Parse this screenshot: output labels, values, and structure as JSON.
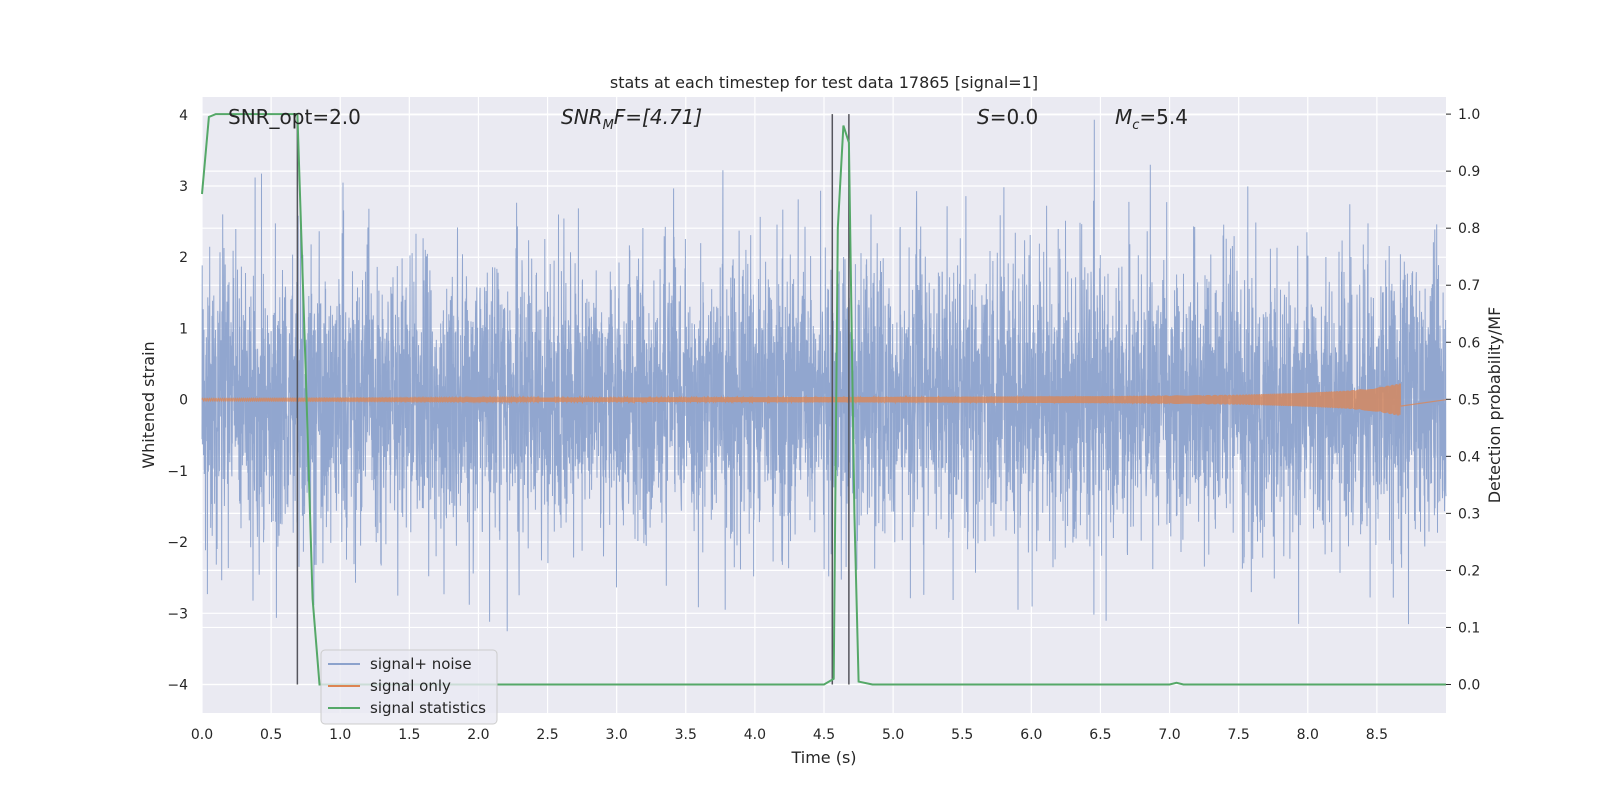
{
  "chart_data": {
    "type": "line",
    "title": "stats at each timestep for test data 17865 [signal=1]",
    "xlabel": "Time (s)",
    "ylabel": "Whitened strain",
    "y2label": "Detection probability/MF",
    "xlim": [
      0.0,
      9.0
    ],
    "ylim": [
      -4.4,
      4.25
    ],
    "y2lim": [
      -0.05,
      1.03
    ],
    "x_ticks": [
      "0.0",
      "0.5",
      "1.0",
      "1.5",
      "2.0",
      "2.5",
      "3.0",
      "3.5",
      "4.0",
      "4.5",
      "5.0",
      "5.5",
      "6.0",
      "6.5",
      "7.0",
      "7.5",
      "8.0",
      "8.5"
    ],
    "y_ticks": [
      "4",
      "3",
      "2",
      "1",
      "0",
      "−1",
      "−2",
      "−3",
      "−4"
    ],
    "y2_ticks": [
      "1.0",
      "0.9",
      "0.8",
      "0.7",
      "0.6",
      "0.5",
      "0.4",
      "0.3",
      "0.2",
      "0.1",
      "0.0"
    ],
    "grid": true,
    "legend_position": "lower-left",
    "annotations": {
      "snr_opt": "SNR_opt=2.0",
      "snr_mf_base": "SNR",
      "snr_mf_sub": "M",
      "snr_mf_rest": "F=[4.71]",
      "s_sym": "S",
      "s_rest": "=0.0",
      "mc_base": "M",
      "mc_sub": "c",
      "mc_rest": "=5.4"
    },
    "series": [
      {
        "name": "signal+ noise",
        "color": "#8ca2cc",
        "axis": "left",
        "kind": "noise",
        "duration": 9.0,
        "sample_rate_shown": 2048,
        "typical_amplitude": 1.55,
        "peak_max": 3.93,
        "peak_min": -4.0
      },
      {
        "name": "signal only",
        "color": "#dd8452",
        "axis": "left",
        "kind": "chirp",
        "envelope_t": [
          0.0,
          3.0,
          5.0,
          6.5,
          7.5,
          8.0,
          8.3,
          8.5,
          8.67
        ],
        "envelope_a": [
          0.02,
          0.03,
          0.04,
          0.05,
          0.07,
          0.1,
          0.13,
          0.17,
          0.23
        ]
      },
      {
        "name": "signal statistics",
        "color": "#55a868",
        "axis": "right",
        "x": [
          0.0,
          0.05,
          0.1,
          0.2,
          0.5,
          0.65,
          0.69,
          0.75,
          0.8,
          0.85,
          1.0,
          2.0,
          3.0,
          4.0,
          4.5,
          4.57,
          4.6,
          4.64,
          4.68,
          4.72,
          4.75,
          4.85,
          5.0,
          6.0,
          7.0,
          7.05,
          7.1,
          7.5,
          8.0,
          8.5,
          9.0
        ],
        "y": [
          0.86,
          0.995,
          1.0,
          1.0,
          1.0,
          1.0,
          1.0,
          0.55,
          0.15,
          0.0,
          0.0,
          0.0,
          0.0,
          0.0,
          0.0,
          0.01,
          0.8,
          0.98,
          0.95,
          0.3,
          0.005,
          0.0,
          0.0,
          0.0,
          0.0,
          0.003,
          0.0,
          0.0,
          0.0,
          0.0,
          0.0
        ]
      }
    ],
    "vertical_lines": [
      {
        "x": 0.69,
        "color": "#55555d"
      },
      {
        "x": 4.56,
        "color": "#55555d"
      },
      {
        "x": 4.68,
        "color": "#55555d"
      }
    ]
  }
}
